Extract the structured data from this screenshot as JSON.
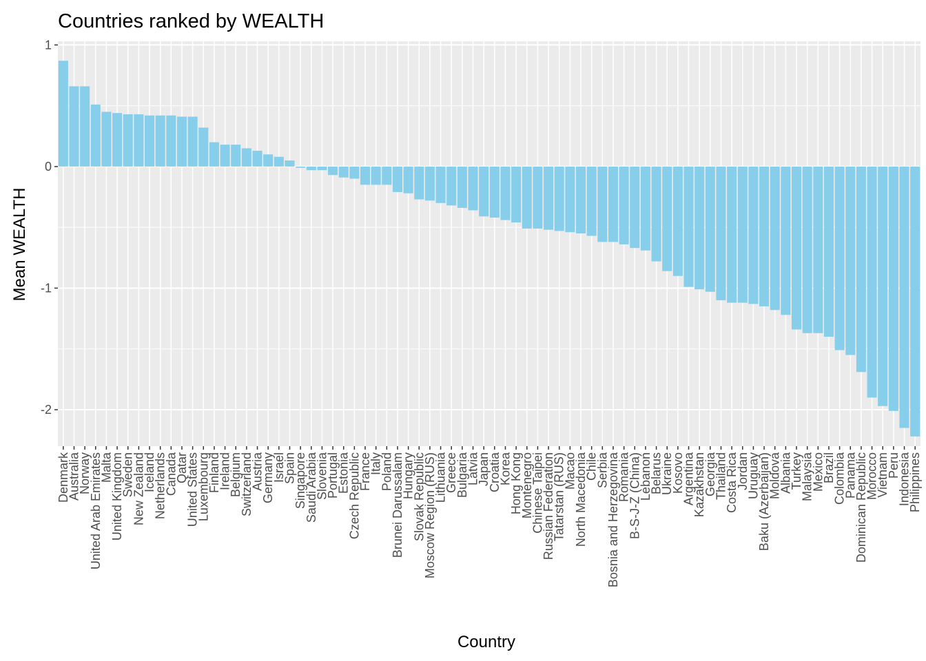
{
  "chart_data": {
    "type": "bar",
    "title": "Countries ranked by WEALTH",
    "xlabel": "Country",
    "ylabel": "Mean WEALTH",
    "ylim": [
      -2.3,
      1.03
    ],
    "y_ticks": [
      1,
      0,
      -1,
      -2
    ],
    "y_tick_labels": [
      "1",
      "0",
      "-1",
      "-2"
    ],
    "grid": true,
    "bar_color": "#87CEEB",
    "panel_color": "#EBEBEB",
    "categories": [
      "Denmark",
      "Australia",
      "Norway",
      "United Arab Emirates",
      "Malta",
      "United Kingdom",
      "Sweden",
      "New Zealand",
      "Iceland",
      "Netherlands",
      "Canada",
      "Qatar",
      "United States",
      "Luxembourg",
      "Finland",
      "Ireland",
      "Belgium",
      "Switzerland",
      "Austria",
      "Germany",
      "Israel",
      "Spain",
      "Singapore",
      "Saudi Arabia",
      "Slovenia",
      "Portugal",
      "Estonia",
      "Czech Republic",
      "France",
      "Italy",
      "Poland",
      "Brunei Darussalam",
      "Hungary",
      "Slovak Republic",
      "Moscow Region (RUS)",
      "Lithuania",
      "Greece",
      "Bulgaria",
      "Latvia",
      "Japan",
      "Croatia",
      "Korea",
      "Hong Kong",
      "Montenegro",
      "Chinese Taipei",
      "Russian Federation",
      "Tatarstan (RUS)",
      "Macao",
      "North Macedonia",
      "Chile",
      "Serbia",
      "Bosnia and Herzegovina",
      "Romania",
      "B-S-J-Z (China)",
      "Lebanon",
      "Belarus",
      "Ukraine",
      "Kosovo",
      "Argentina",
      "Kazakhstan",
      "Georgia",
      "Thailand",
      "Costa Rica",
      "Jordan",
      "Uruguay",
      "Baku (Azerbaijan)",
      "Moldova",
      "Albania",
      "Turkey",
      "Malaysia",
      "Mexico",
      "Brazil",
      "Colombia",
      "Panama",
      "Dominican Republic",
      "Morocco",
      "Vietnam",
      "Peru",
      "Indonesia",
      "Philippines"
    ],
    "values": [
      0.87,
      0.66,
      0.66,
      0.51,
      0.45,
      0.44,
      0.43,
      0.43,
      0.42,
      0.42,
      0.42,
      0.41,
      0.41,
      0.32,
      0.2,
      0.18,
      0.18,
      0.15,
      0.13,
      0.1,
      0.08,
      0.05,
      -0.01,
      -0.03,
      -0.03,
      -0.07,
      -0.09,
      -0.1,
      -0.15,
      -0.15,
      -0.15,
      -0.21,
      -0.22,
      -0.27,
      -0.28,
      -0.3,
      -0.32,
      -0.34,
      -0.36,
      -0.41,
      -0.42,
      -0.44,
      -0.46,
      -0.51,
      -0.51,
      -0.52,
      -0.53,
      -0.54,
      -0.55,
      -0.57,
      -0.62,
      -0.62,
      -0.64,
      -0.67,
      -0.69,
      -0.78,
      -0.86,
      -0.9,
      -0.99,
      -1.01,
      -1.03,
      -1.1,
      -1.12,
      -1.12,
      -1.13,
      -1.15,
      -1.18,
      -1.22,
      -1.34,
      -1.37,
      -1.37,
      -1.4,
      -1.51,
      -1.55,
      -1.69,
      -1.9,
      -1.97,
      -2.01,
      -2.15,
      -2.22
    ]
  }
}
